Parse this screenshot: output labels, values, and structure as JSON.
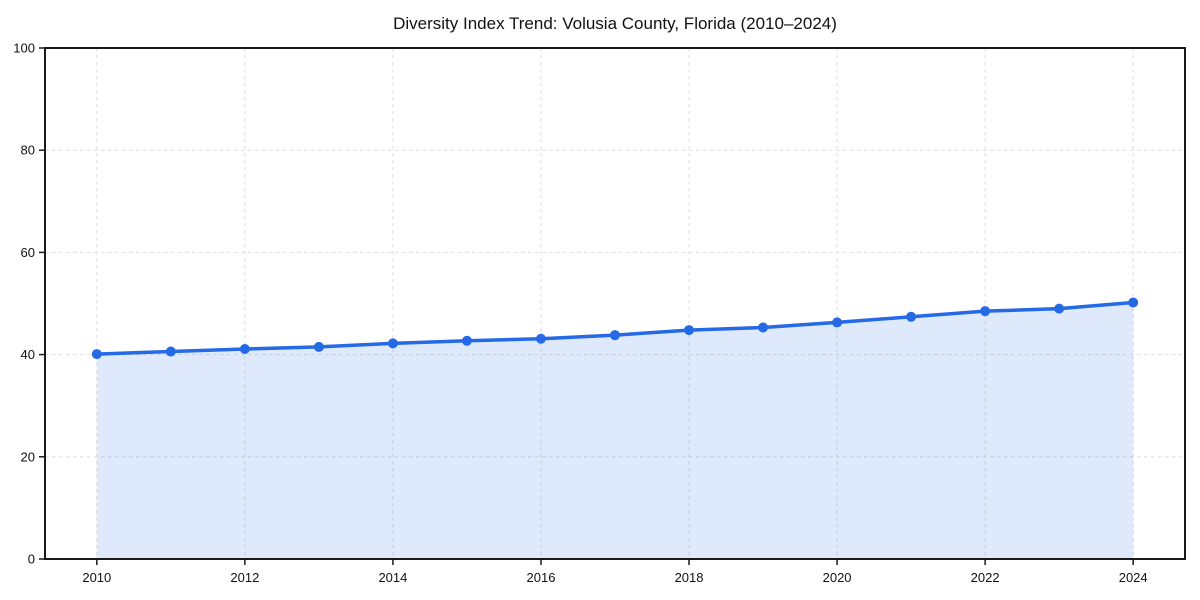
{
  "chart_data": {
    "type": "area",
    "title": "Diversity Index Trend: Volusia County, Florida (2010–2024)",
    "x": [
      2010,
      2011,
      2012,
      2013,
      2014,
      2015,
      2016,
      2017,
      2018,
      2019,
      2020,
      2021,
      2022,
      2023,
      2024
    ],
    "series": [
      {
        "name": "Diversity Index",
        "values": [
          40.1,
          40.6,
          41.1,
          41.5,
          42.2,
          42.7,
          43.1,
          43.8,
          44.8,
          45.3,
          46.3,
          47.4,
          48.5,
          49.0,
          50.2
        ]
      }
    ],
    "xlabel": "",
    "ylabel": "",
    "xlim": [
      2009.3,
      2024.7
    ],
    "ylim": [
      0,
      100
    ],
    "xticks": [
      2010,
      2012,
      2014,
      2016,
      2018,
      2020,
      2022,
      2024
    ],
    "yticks": [
      0,
      20,
      40,
      60,
      80,
      100
    ],
    "grid": true,
    "grid_style": "dashed",
    "legend": false,
    "marker": "circle",
    "line_color": "#2469e6",
    "fill_color": "#2469e6",
    "axis_color": "#1a1a1a",
    "grid_color": "#dedede",
    "background_color": "#ffffff"
  }
}
